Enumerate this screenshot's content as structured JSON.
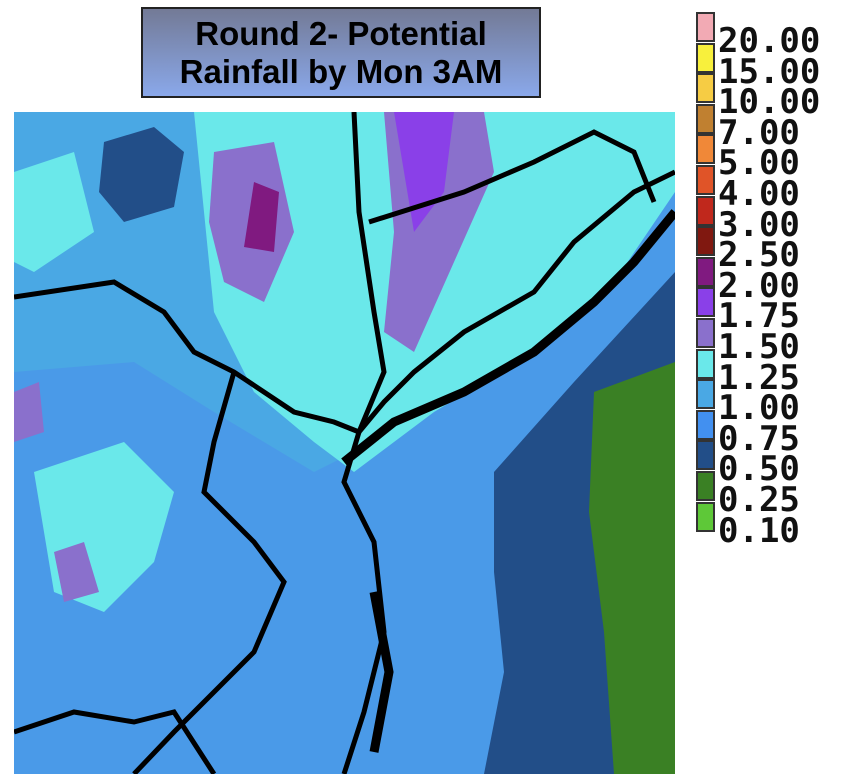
{
  "title": {
    "line1": "Round 2- Potential",
    "line2": "Rainfall by Mon 3AM"
  },
  "legend": {
    "items": [
      {
        "label": "20.00",
        "color": "#f2aab4"
      },
      {
        "label": "15.00",
        "color": "#f8f03c"
      },
      {
        "label": "10.00",
        "color": "#f6cc44"
      },
      {
        "label": "7.00",
        "color": "#c08030"
      },
      {
        "label": "5.00",
        "color": "#f08838"
      },
      {
        "label": "4.00",
        "color": "#e05428"
      },
      {
        "label": "3.00",
        "color": "#c0281c"
      },
      {
        "label": "2.50",
        "color": "#801810"
      },
      {
        "label": "2.00",
        "color": "#801a80"
      },
      {
        "label": "1.75",
        "color": "#8a40e8"
      },
      {
        "label": "1.50",
        "color": "#8a70cc"
      },
      {
        "label": "1.25",
        "color": "#6ae8ea"
      },
      {
        "label": "1.00",
        "color": "#4aa8e4"
      },
      {
        "label": "0.75",
        "color": "#4290f0"
      },
      {
        "label": "0.50",
        "color": "#224e88"
      },
      {
        "label": "0.25",
        "color": "#3a8024"
      },
      {
        "label": "0.10",
        "color": "#5ec838"
      }
    ]
  }
}
